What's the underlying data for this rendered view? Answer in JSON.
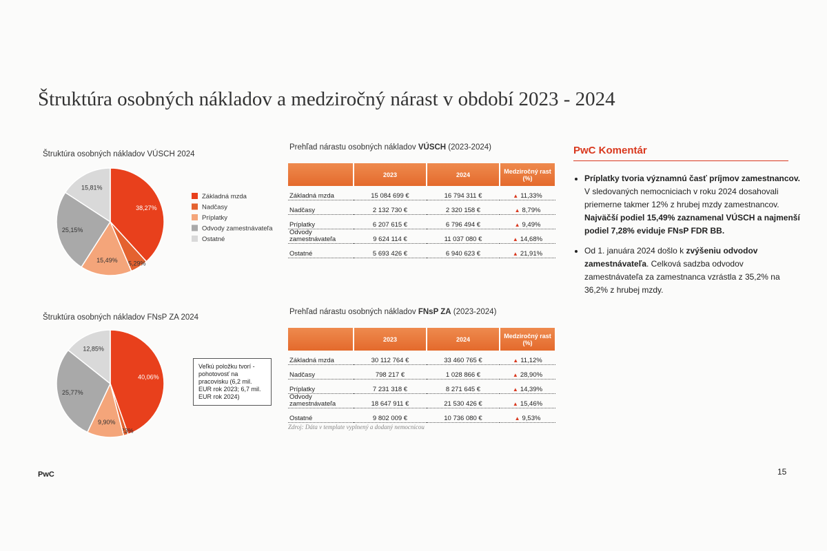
{
  "title": "Štruktúra osobných nákladov a medziročný nárast v období 2023 - 2024",
  "chart_data": [
    {
      "type": "pie",
      "title": "Štruktúra osobných nákladov VÚSCH 2024",
      "categories": [
        "Základná mzda",
        "Nadčasy",
        "Príplatky",
        "Odvody zamestnávateľa",
        "Ostatné"
      ],
      "values": [
        38.27,
        5.29,
        15.49,
        25.15,
        15.81
      ],
      "value_labels": [
        "38,27%",
        "5,29%",
        "15,49%",
        "25,15%",
        "15,81%"
      ],
      "colors": [
        "#e8401c",
        "#e4622f",
        "#f4a57a",
        "#a9a9a9",
        "#d9d9d9"
      ],
      "legend": "right"
    },
    {
      "type": "pie",
      "title": "Štruktúra osobných nákladov FNsP ZA 2024",
      "values": [
        40.06,
        1.23,
        9.9,
        25.77,
        12.85
      ],
      "value_labels": [
        "40,06%",
        "1,23%",
        "9,90%",
        "25,77%",
        "12,85%"
      ],
      "colors": [
        "#e8401c",
        "#e4622f",
        "#f4a57a",
        "#a9a9a9",
        "#d9d9d9"
      ]
    }
  ],
  "note": "Veľkú položku tvorí - pohotovosť na pracovisku (6,2 mil. EUR rok 2023; 6,7 mil. EUR rok 2024)",
  "tables": [
    {
      "title": [
        {
          "text": "Prehľad nárastu osobných nákladov ",
          "bold": false
        },
        {
          "text": "VÚSCH",
          "bold": true
        },
        {
          "text": " (2023-2024)",
          "bold": false
        }
      ],
      "header": [
        "2023",
        "2024",
        "Medziročný rast (%)"
      ],
      "rows": [
        [
          "Základná mzda",
          "15 084 699 €",
          "16 794 311 €",
          "11,33%"
        ],
        [
          "Nadčasy",
          "2 132 730 €",
          "2 320 158 €",
          "8,79%"
        ],
        [
          "Príplatky",
          "6 207 615 €",
          "6 796 494 €",
          "9,49%"
        ],
        [
          "Odvody zamestnávateľa",
          "9 624 114 €",
          "11 037 080 €",
          "14,68%"
        ],
        [
          "Ostatné",
          "5 693 426 €",
          "6 940 623 €",
          "21,91%"
        ]
      ]
    },
    {
      "title": [
        {
          "text": "Prehľad nárastu osobných nákladov ",
          "bold": false
        },
        {
          "text": "FNsP ZA",
          "bold": true
        },
        {
          "text": " (2023-2024)",
          "bold": false
        }
      ],
      "header": [
        "2023",
        "2024",
        "Medziročný rast (%)"
      ],
      "rows": [
        [
          "Základná mzda",
          "30 112 764 €",
          "33 460 765 €",
          "11,12%"
        ],
        [
          "Nadčasy",
          "798 217 €",
          "1 028 866 €",
          "28,90%"
        ],
        [
          "Príplatky",
          "7 231 318 €",
          "8 271 645 €",
          "14,39%"
        ],
        [
          "Odvody zamestnávateľa",
          "18 647 911 €",
          "21 530 426 €",
          "15,46%"
        ],
        [
          "Ostatné",
          "9 802 009 €",
          "10 736 080 €",
          "9,53%"
        ]
      ]
    }
  ],
  "source": "Zdroj: Dáta v template vyplnený a dodaný nemocnicou",
  "commentary": {
    "title": "PwC Komentár",
    "bullets": [
      [
        {
          "text": "Príplatky tvoria významnú časť príjmov zamestnancov.",
          "bold": true
        },
        {
          "text": " V sledovaných nemocniciach v roku 2024 dosahovali priemerne takmer 12% z hrubej mzdy zamestnancov. ",
          "bold": false
        },
        {
          "text": "Najväčší podiel 15,49% zaznamenal VÚSCH a najmenší podiel 7,28% eviduje FNsP FDR BB.",
          "bold": true
        }
      ],
      [
        {
          "text": "Od 1. januára 2024 došlo k ",
          "bold": false
        },
        {
          "text": "zvýšeniu odvodov zamestnávateľa",
          "bold": true
        },
        {
          "text": ". Celková sadzba odvodov zamestnávateľa za zamestnanca vzrástla z 35,2% na 36,2% z hrubej mzdy.",
          "bold": false
        }
      ]
    ]
  },
  "footer": {
    "left": "PwC",
    "page": "15"
  }
}
